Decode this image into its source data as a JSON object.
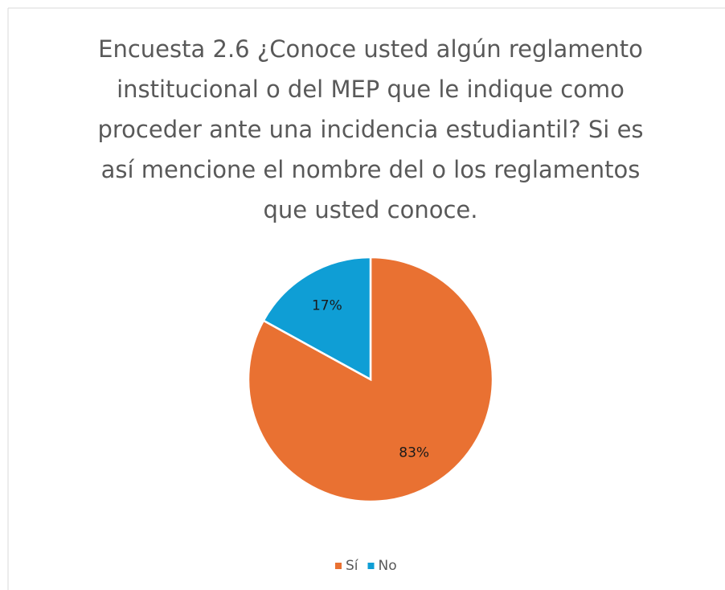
{
  "chart_data": {
    "type": "pie",
    "title": "Encuesta 2.6 ¿Conoce usted algún reglamento institucional o del MEP que le indique como proceder ante una incidencia estudiantil? Si es así mencione el nombre del o los reglamentos que usted conoce.",
    "categories": [
      "Sí",
      "No"
    ],
    "values": [
      83,
      17
    ],
    "value_labels": [
      "83%",
      "17%"
    ],
    "colors": [
      "#e97132",
      "#0f9ed5"
    ],
    "legend": "bottom"
  }
}
